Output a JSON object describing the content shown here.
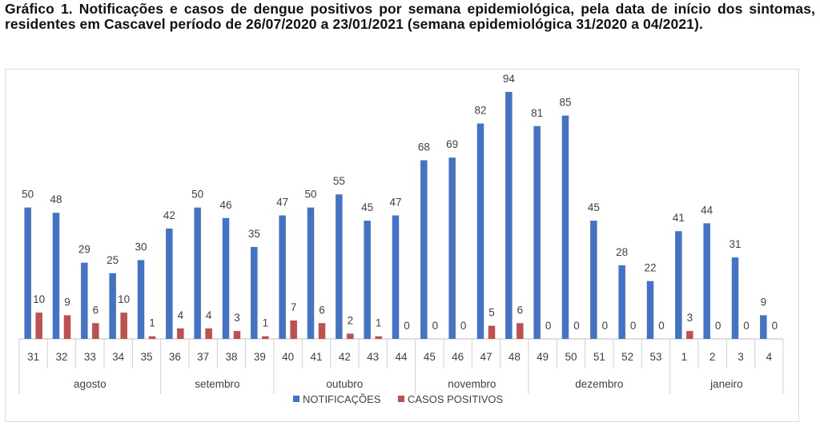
{
  "title": "Gráfico 1. Notificações e casos de dengue positivos por semana epidemiológica, pela data de início dos sintomas,  residentes em Cascavel período de 26/07/2020 a 23/01/2021 (semana epidemiológica 31/2020 a 04/2021).",
  "chart_data": {
    "type": "bar",
    "categories": [
      "31",
      "32",
      "33",
      "34",
      "35",
      "36",
      "37",
      "38",
      "39",
      "40",
      "41",
      "42",
      "43",
      "44",
      "45",
      "46",
      "47",
      "48",
      "49",
      "50",
      "51",
      "52",
      "53",
      "1",
      "2",
      "3",
      "4"
    ],
    "groups": [
      {
        "label": "agosto",
        "count": 5
      },
      {
        "label": "setembro",
        "count": 4
      },
      {
        "label": "outubro",
        "count": 5
      },
      {
        "label": "novembro",
        "count": 4
      },
      {
        "label": "dezembro",
        "count": 5
      },
      {
        "label": "janeiro",
        "count": 4
      }
    ],
    "series": [
      {
        "name": "NOTIFICAÇÕES",
        "color": "#4472C4",
        "values": [
          50,
          48,
          29,
          25,
          30,
          42,
          50,
          46,
          35,
          47,
          50,
          55,
          45,
          47,
          68,
          69,
          82,
          94,
          81,
          85,
          45,
          28,
          22,
          41,
          44,
          31,
          9
        ]
      },
      {
        "name": "CASOS POSITIVOS",
        "color": "#C0504D",
        "values": [
          10,
          9,
          6,
          10,
          1,
          4,
          4,
          3,
          1,
          7,
          6,
          2,
          1,
          0,
          0,
          0,
          5,
          6,
          0,
          0,
          0,
          0,
          0,
          3,
          0,
          0,
          0
        ]
      }
    ],
    "ylim": [
      0,
      100
    ],
    "grid": false,
    "legend": "bottom"
  }
}
